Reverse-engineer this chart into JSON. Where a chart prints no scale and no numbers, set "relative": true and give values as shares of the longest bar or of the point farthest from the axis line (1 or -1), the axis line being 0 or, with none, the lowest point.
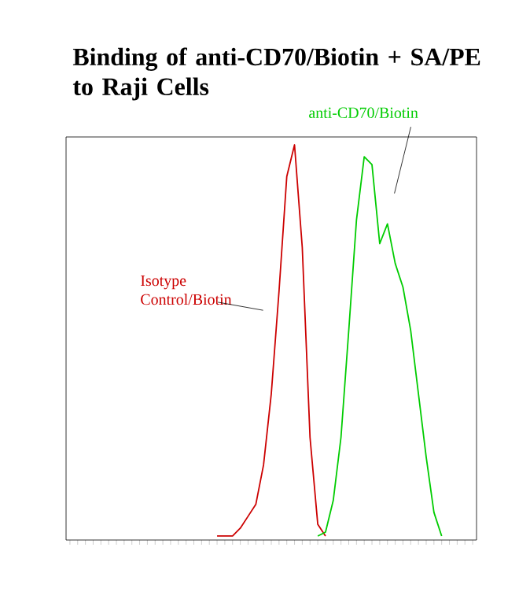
{
  "chart_data": {
    "type": "line",
    "title": "Binding of anti-CD70/Biotin + SA/PE to Raji Cells",
    "relative": true,
    "tick_labels": false,
    "categories": [
      null,
      null,
      null,
      null,
      null,
      null,
      null,
      null,
      null,
      null,
      null,
      null,
      null,
      null,
      null,
      null,
      null,
      null,
      null,
      null,
      null,
      null,
      null,
      null,
      null,
      null,
      null,
      null,
      null,
      null,
      null,
      null,
      null,
      null,
      null,
      null,
      null,
      null,
      null,
      null,
      null,
      null,
      null,
      null,
      null,
      null,
      null,
      null,
      null,
      null,
      null,
      null,
      null
    ],
    "series": [
      {
        "name": "Isotype Control/Biotin",
        "color": "#cc0000",
        "values": [
          null,
          null,
          null,
          null,
          null,
          null,
          null,
          null,
          null,
          null,
          null,
          null,
          null,
          null,
          null,
          null,
          null,
          null,
          null,
          0.01,
          0.01,
          0.01,
          0.03,
          0.06,
          0.09,
          0.19,
          0.37,
          0.63,
          0.92,
          1,
          0.74,
          0.26,
          0.04,
          0.01,
          null,
          null,
          null,
          null,
          null,
          null,
          null,
          null,
          null,
          null,
          null,
          null,
          null,
          null,
          null,
          null,
          null,
          null,
          null
        ]
      },
      {
        "name": "anti-CD70/Biotin",
        "color": "#00cc00",
        "values": [
          null,
          null,
          null,
          null,
          null,
          null,
          null,
          null,
          null,
          null,
          null,
          null,
          null,
          null,
          null,
          null,
          null,
          null,
          null,
          null,
          null,
          null,
          null,
          null,
          null,
          null,
          null,
          null,
          null,
          null,
          null,
          null,
          0.01,
          0.02,
          0.1,
          0.26,
          0.53,
          0.81,
          0.97,
          0.95,
          0.75,
          0.8,
          0.7,
          0.64,
          0.53,
          0.37,
          0.21,
          0.07,
          0.01,
          null,
          null,
          null,
          null
        ]
      }
    ]
  }
}
